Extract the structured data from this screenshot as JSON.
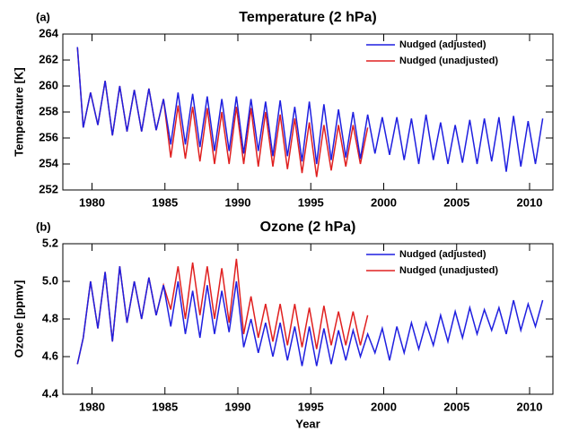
{
  "chart_data": [
    {
      "type": "line",
      "panel_label": "(a)",
      "title": "Temperature (2 hPa)",
      "ylabel": "Temperature [K]",
      "x": [
        1979.0,
        1979.4,
        1979.9,
        1980.4,
        1980.9,
        1981.4,
        1981.9,
        1982.4,
        1982.9,
        1983.4,
        1983.9,
        1984.4,
        1984.9,
        1985.4,
        1985.9,
        1986.4,
        1986.9,
        1987.4,
        1987.9,
        1988.4,
        1988.9,
        1989.4,
        1989.9,
        1990.4,
        1990.9,
        1991.4,
        1991.9,
        1992.4,
        1992.9,
        1993.4,
        1993.9,
        1994.4,
        1994.9,
        1995.4,
        1995.9,
        1996.4,
        1996.9,
        1997.4,
        1997.9,
        1998.4,
        1998.9,
        1999.4,
        1999.9,
        2000.4,
        2000.9,
        2001.4,
        2001.9,
        2002.4,
        2002.9,
        2003.4,
        2003.9,
        2004.4,
        2004.9,
        2005.4,
        2005.9,
        2006.4,
        2006.9,
        2007.4,
        2007.9,
        2008.4,
        2008.9,
        2009.4,
        2009.9,
        2010.4,
        2010.9
      ],
      "series": [
        {
          "name": "Nudged (adjusted)",
          "color": "#1f1fe0",
          "values": [
            263.0,
            256.8,
            259.5,
            257.0,
            260.4,
            256.2,
            260.0,
            256.5,
            259.7,
            256.5,
            259.8,
            256.6,
            259.0,
            255.5,
            259.5,
            255.5,
            259.4,
            255.3,
            259.2,
            255.0,
            259.0,
            255.0,
            259.2,
            254.8,
            259.0,
            255.0,
            258.8,
            254.6,
            258.9,
            254.6,
            258.4,
            254.2,
            258.8,
            254.0,
            258.6,
            254.3,
            258.2,
            254.5,
            258.0,
            254.4,
            257.8,
            254.8,
            257.6,
            254.7,
            257.6,
            254.3,
            257.5,
            254.0,
            257.8,
            254.3,
            257.2,
            254.0,
            257.0,
            254.1,
            257.4,
            254.0,
            257.5,
            254.2,
            257.6,
            253.4,
            257.7,
            253.8,
            257.3,
            254.0,
            257.5
          ]
        },
        {
          "name": "Nudged (unadjusted)",
          "color": "#e02020",
          "values": [
            263.0,
            256.8,
            259.5,
            257.0,
            260.4,
            256.2,
            260.0,
            256.5,
            259.7,
            256.5,
            259.8,
            256.6,
            259.0,
            254.5,
            258.5,
            254.4,
            258.4,
            254.2,
            258.3,
            254.0,
            258.0,
            254.0,
            258.4,
            254.0,
            258.3,
            253.8,
            258.0,
            253.8,
            257.8,
            253.6,
            257.5,
            253.3,
            257.2,
            253.0,
            257.0,
            253.5,
            257.0,
            253.8,
            257.0,
            254.0,
            256.8,
            null,
            null,
            null,
            null,
            null,
            null,
            null,
            null,
            null,
            null,
            null,
            null,
            null,
            null,
            null,
            null,
            null,
            null,
            null,
            null,
            null,
            null,
            null,
            null
          ]
        }
      ],
      "xlim": [
        1978,
        2011.6
      ],
      "xticks": [
        1980,
        1985,
        1990,
        1995,
        2000,
        2005,
        2010
      ],
      "ylim": [
        252,
        264
      ],
      "yticks": [
        252,
        254,
        256,
        258,
        260,
        262,
        264
      ]
    },
    {
      "type": "line",
      "panel_label": "(b)",
      "title": "Ozone (2 hPa)",
      "ylabel": "Ozone [ppmv]",
      "xlabel": "Year",
      "x": [
        1979.0,
        1979.4,
        1979.9,
        1980.4,
        1980.9,
        1981.4,
        1981.9,
        1982.4,
        1982.9,
        1983.4,
        1983.9,
        1984.4,
        1984.9,
        1985.4,
        1985.9,
        1986.4,
        1986.9,
        1987.4,
        1987.9,
        1988.4,
        1988.9,
        1989.4,
        1989.9,
        1990.4,
        1990.9,
        1991.4,
        1991.9,
        1992.4,
        1992.9,
        1993.4,
        1993.9,
        1994.4,
        1994.9,
        1995.4,
        1995.9,
        1996.4,
        1996.9,
        1997.4,
        1997.9,
        1998.4,
        1998.9,
        1999.4,
        1999.9,
        2000.4,
        2000.9,
        2001.4,
        2001.9,
        2002.4,
        2002.9,
        2003.4,
        2003.9,
        2004.4,
        2004.9,
        2005.4,
        2005.9,
        2006.4,
        2006.9,
        2007.4,
        2007.9,
        2008.4,
        2008.9,
        2009.4,
        2009.9,
        2010.4,
        2010.9
      ],
      "series": [
        {
          "name": "Nudged (adjusted)",
          "color": "#1f1fe0",
          "values": [
            4.56,
            4.7,
            5.0,
            4.75,
            5.05,
            4.68,
            5.08,
            4.78,
            5.0,
            4.8,
            5.02,
            4.82,
            4.98,
            4.76,
            5.0,
            4.72,
            4.95,
            4.7,
            4.98,
            4.72,
            4.95,
            4.73,
            5.0,
            4.65,
            4.8,
            4.62,
            4.78,
            4.6,
            4.78,
            4.58,
            4.76,
            4.55,
            4.76,
            4.55,
            4.75,
            4.56,
            4.74,
            4.58,
            4.74,
            4.6,
            4.72,
            4.62,
            4.75,
            4.58,
            4.76,
            4.62,
            4.78,
            4.64,
            4.78,
            4.66,
            4.82,
            4.68,
            4.84,
            4.7,
            4.86,
            4.72,
            4.85,
            4.74,
            4.86,
            4.72,
            4.9,
            4.74,
            4.88,
            4.76,
            4.9
          ]
        },
        {
          "name": "Nudged (unadjusted)",
          "color": "#e02020",
          "values": [
            4.56,
            4.7,
            5.0,
            4.75,
            5.05,
            4.68,
            5.08,
            4.78,
            5.0,
            4.8,
            5.02,
            4.82,
            4.98,
            4.85,
            5.08,
            4.8,
            5.1,
            4.82,
            5.08,
            4.8,
            5.07,
            4.78,
            5.12,
            4.72,
            4.92,
            4.7,
            4.88,
            4.68,
            4.88,
            4.66,
            4.88,
            4.65,
            4.86,
            4.64,
            4.87,
            4.66,
            4.84,
            4.66,
            4.84,
            4.66,
            4.82,
            null,
            null,
            null,
            null,
            null,
            null,
            null,
            null,
            null,
            null,
            null,
            null,
            null,
            null,
            null,
            null,
            null,
            null,
            null,
            null,
            null,
            null,
            null,
            null
          ]
        }
      ],
      "xlim": [
        1978,
        2011.6
      ],
      "xticks": [
        1980,
        1985,
        1990,
        1995,
        2000,
        2005,
        2010
      ],
      "ylim": [
        4.4,
        5.2
      ],
      "yticks": [
        4.4,
        4.6,
        4.8,
        {
          "value": 5,
          "label": "5.0"
        },
        5.2
      ]
    }
  ]
}
